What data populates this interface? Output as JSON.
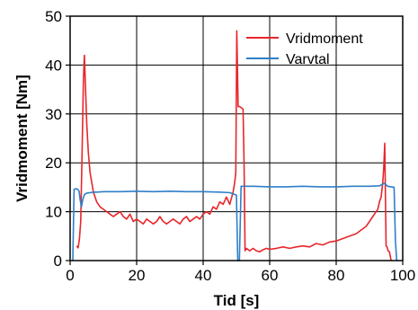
{
  "chart_data": {
    "type": "line",
    "title": "",
    "xlabel": "Tid [s]",
    "ylabel": "Vridmoment [Nm]",
    "xlim": [
      0,
      100
    ],
    "ylim": [
      0,
      50
    ],
    "xticks": [
      0,
      20,
      40,
      60,
      80,
      100
    ],
    "yticks": [
      0,
      10,
      20,
      30,
      40,
      50
    ],
    "x_tick_labels": [
      "0",
      "20",
      "40",
      "60",
      "80",
      "100"
    ],
    "y_tick_labels": [
      "0",
      "10",
      "20",
      "30",
      "40",
      "50"
    ],
    "grid": true,
    "legend_position": "top-right",
    "series": [
      {
        "name": "Vridmoment",
        "color": "#e8262b",
        "x": [
          2,
          2.4,
          2.8,
          3.2,
          3.6,
          4,
          4.3,
          4.6,
          5,
          5.5,
          6,
          7,
          8,
          9,
          10,
          11,
          12,
          13,
          14,
          15,
          16,
          17,
          18,
          19,
          20,
          21,
          22,
          23,
          24,
          25,
          26,
          27,
          28,
          29,
          30,
          31,
          32,
          33,
          34,
          35,
          36,
          37,
          38,
          39,
          40,
          41,
          42,
          43,
          44,
          45,
          46,
          47,
          48,
          49,
          49.5,
          49.8,
          50.1,
          50.3,
          50.5,
          51,
          52,
          52.3,
          52.6,
          53,
          54,
          55,
          56,
          57,
          58,
          59,
          60,
          62,
          64,
          66,
          68,
          70,
          72,
          74,
          76,
          78,
          80,
          82,
          84,
          86,
          87,
          88,
          89,
          90,
          91,
          92,
          92.5,
          93,
          93.5,
          94,
          94.3,
          94.6,
          95,
          95.3,
          95.6,
          96,
          96.5
        ],
        "values": [
          3,
          2.6,
          4.5,
          8,
          22,
          37,
          42,
          36,
          28,
          22,
          18,
          14,
          12,
          11,
          10.5,
          10,
          9.5,
          9,
          9.5,
          10,
          9,
          8.5,
          9.5,
          8,
          8.5,
          8,
          7.5,
          8.5,
          8,
          7.5,
          8,
          9,
          8,
          7.5,
          8,
          8.5,
          8,
          7.5,
          8.5,
          9,
          8,
          8.5,
          9,
          8.5,
          9.5,
          10,
          9.5,
          11,
          10.5,
          12,
          11.5,
          13,
          11.5,
          14,
          16,
          18,
          47,
          40,
          31.5,
          31.5,
          31,
          20,
          2,
          2.5,
          2,
          2.5,
          2,
          1.8,
          2.2,
          2.5,
          2.3,
          2.5,
          2.8,
          2.5,
          2.8,
          3,
          2.8,
          3.5,
          3.2,
          3.8,
          4,
          4.5,
          5,
          5.5,
          6,
          6.5,
          7,
          8,
          9,
          10,
          10.5,
          12,
          13,
          16,
          19,
          24,
          3,
          2.8,
          2,
          1.8,
          0
        ]
      },
      {
        "name": "Varvtal",
        "color": "#2f7fc8",
        "x": [
          0.8,
          1.2,
          1.8,
          2.3,
          2.7,
          3,
          3.4,
          3.8,
          4.3,
          5,
          6,
          7,
          8,
          10,
          15,
          20,
          25,
          30,
          35,
          40,
          45,
          48,
          50,
          50.4,
          50.9,
          51.4,
          52,
          55,
          60,
          65,
          70,
          75,
          80,
          85,
          90,
          93,
          94.5,
          95.5,
          96.5,
          97.4,
          97.8,
          98.2,
          98.5
        ],
        "values": [
          0,
          14.6,
          14.7,
          14.6,
          14.2,
          12.5,
          11,
          12.5,
          13.5,
          13.8,
          13.9,
          14,
          14,
          14.1,
          14.1,
          14.2,
          14.1,
          14.2,
          14.1,
          14.1,
          14,
          13.9,
          13.4,
          0,
          0,
          15.2,
          15.2,
          15.2,
          15.1,
          15.1,
          15.2,
          15.1,
          15.1,
          15.2,
          15.2,
          15.3,
          15.8,
          15.2,
          15.1,
          15,
          4,
          0,
          0
        ]
      }
    ]
  }
}
